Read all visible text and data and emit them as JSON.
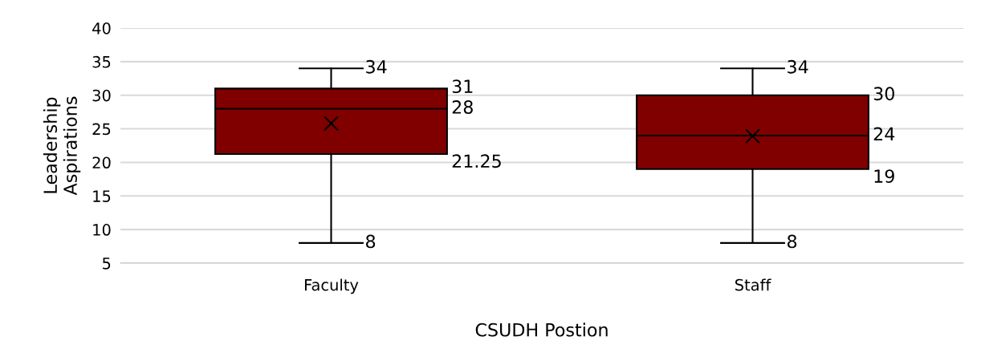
{
  "chart_data": {
    "type": "box",
    "categories": [
      "Faculty",
      "Staff"
    ],
    "boxes": [
      {
        "low": 8,
        "q1": 21.25,
        "median": 28,
        "q3": 31,
        "high": 34,
        "mean": 25.8
      },
      {
        "low": 8,
        "q1": 19,
        "median": 24,
        "q3": 30,
        "high": 34,
        "mean": 23.9
      }
    ],
    "color": "#800000",
    "xlabel": "CSUDH Postion",
    "ylabel": "Leadership\nAspirations",
    "ylim": [
      5,
      40
    ],
    "yticks": [
      5,
      10,
      15,
      20,
      25,
      30,
      35,
      40
    ],
    "grid": "y",
    "value_labels": [
      [
        "8",
        "21.25",
        "28",
        "31",
        "34"
      ],
      [
        "8",
        "19",
        "24",
        "30",
        "34"
      ]
    ]
  }
}
